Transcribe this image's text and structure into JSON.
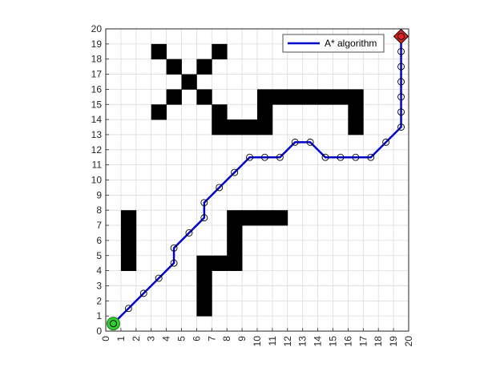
{
  "chart_data": {
    "type": "scatter",
    "title": "",
    "xlabel": "",
    "ylabel": "",
    "xlim": [
      0,
      20
    ],
    "ylim": [
      0,
      20
    ],
    "xticks": [
      "0",
      "1",
      "2",
      "3",
      "4",
      "5",
      "6",
      "7",
      "8",
      "9",
      "10",
      "11",
      "12",
      "13",
      "14",
      "15",
      "16",
      "17",
      "18",
      "19",
      "20"
    ],
    "yticks": [
      "0",
      "1",
      "2",
      "3",
      "4",
      "5",
      "6",
      "7",
      "8",
      "9",
      "10",
      "11",
      "12",
      "13",
      "14",
      "15",
      "16",
      "17",
      "18",
      "19",
      "20"
    ],
    "x_tick_rotation": "vertical",
    "grid": true,
    "legend_position": "top-right",
    "obstacle_cells": [
      [
        3,
        18
      ],
      [
        4,
        17
      ],
      [
        5,
        16
      ],
      [
        6,
        17
      ],
      [
        7,
        18
      ],
      [
        6,
        15
      ],
      [
        4,
        15
      ],
      [
        3,
        14
      ],
      [
        7,
        14
      ],
      [
        7,
        13
      ],
      [
        8,
        13
      ],
      [
        9,
        13
      ],
      [
        10,
        13
      ],
      [
        10,
        14
      ],
      [
        10,
        15
      ],
      [
        11,
        15
      ],
      [
        12,
        15
      ],
      [
        13,
        15
      ],
      [
        14,
        15
      ],
      [
        15,
        15
      ],
      [
        16,
        15
      ],
      [
        16,
        14
      ],
      [
        16,
        13
      ],
      [
        1,
        7
      ],
      [
        1,
        6
      ],
      [
        1,
        5
      ],
      [
        1,
        4
      ],
      [
        6,
        4
      ],
      [
        7,
        4
      ],
      [
        8,
        4
      ],
      [
        6,
        3
      ],
      [
        6,
        2
      ],
      [
        6,
        1
      ],
      [
        8,
        5
      ],
      [
        8,
        6
      ],
      [
        8,
        7
      ],
      [
        9,
        7
      ],
      [
        10,
        7
      ],
      [
        11,
        7
      ]
    ],
    "series": [
      {
        "name": "A* algorithm",
        "color": "#0000cc",
        "marker": "circle-open",
        "x": [
          0.5,
          1.5,
          2.5,
          3.5,
          4.5,
          4.5,
          5.5,
          6.5,
          6.5,
          7.5,
          8.5,
          9.5,
          10.5,
          11.5,
          12.5,
          13.5,
          14.5,
          15.5,
          16.5,
          17.5,
          18.5,
          19.5,
          19.5,
          19.5,
          19.5,
          19.5,
          19.5,
          19.5
        ],
        "y": [
          0.5,
          1.5,
          2.5,
          3.5,
          4.5,
          5.5,
          6.5,
          7.5,
          8.5,
          9.5,
          10.5,
          11.5,
          11.5,
          11.5,
          12.5,
          12.5,
          11.5,
          11.5,
          11.5,
          11.5,
          12.5,
          13.5,
          14.5,
          15.5,
          16.5,
          17.5,
          18.5,
          19.5
        ]
      }
    ],
    "start": {
      "x": 0.5,
      "y": 0.5,
      "color": "#33cc33",
      "marker": "circle"
    },
    "goal": {
      "x": 19.5,
      "y": 19.5,
      "color": "#dd2222",
      "marker": "diamond"
    }
  }
}
